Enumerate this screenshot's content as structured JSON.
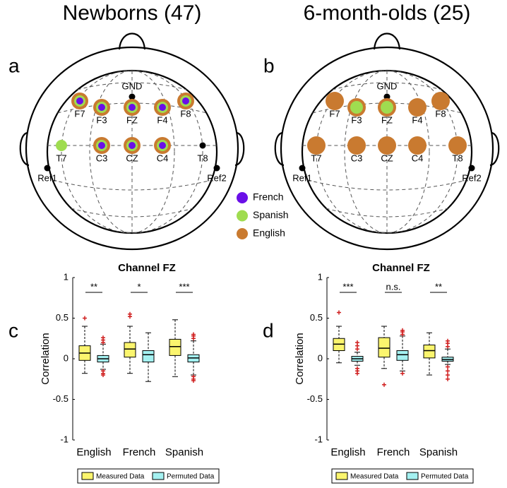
{
  "heads": [
    {
      "panel": "a",
      "title": "Newborns (47)",
      "references": [
        "GND",
        "Ref1",
        "Ref2"
      ],
      "electrodes": [
        {
          "label": "F7",
          "languages": [
            0,
            1,
            2
          ]
        },
        {
          "label": "F3",
          "languages": [
            0,
            1,
            2
          ]
        },
        {
          "label": "FZ",
          "languages": [
            0,
            1,
            2
          ]
        },
        {
          "label": "F4",
          "languages": [
            0,
            1,
            2
          ]
        },
        {
          "label": "F8",
          "languages": [
            0,
            1,
            2
          ]
        },
        {
          "label": "T7",
          "languages": [
            1
          ]
        },
        {
          "label": "C3",
          "languages": [
            0,
            1,
            2
          ]
        },
        {
          "label": "CZ",
          "languages": [
            0,
            1,
            2
          ]
        },
        {
          "label": "C4",
          "languages": [
            0,
            1,
            2
          ]
        },
        {
          "label": "T8",
          "languages": []
        }
      ]
    },
    {
      "panel": "b",
      "title": "6-month-olds (25)",
      "references": [
        "GND",
        "Ref1",
        "Ref2"
      ],
      "electrodes": [
        {
          "label": "F7",
          "languages": [
            2
          ]
        },
        {
          "label": "F3",
          "languages": [
            1,
            2
          ]
        },
        {
          "label": "FZ",
          "languages": [
            1,
            2
          ]
        },
        {
          "label": "F4",
          "languages": [
            2
          ]
        },
        {
          "label": "F8",
          "languages": [
            2
          ]
        },
        {
          "label": "T7",
          "languages": [
            2
          ]
        },
        {
          "label": "C3",
          "languages": [
            2
          ]
        },
        {
          "label": "CZ",
          "languages": [
            2
          ]
        },
        {
          "label": "C4",
          "languages": [
            2
          ]
        },
        {
          "label": "T8",
          "languages": [
            2
          ]
        }
      ]
    }
  ],
  "language_legend": [
    {
      "name": "French",
      "color": "#6a0fe8"
    },
    {
      "name": "Spanish",
      "color": "#9fdc50"
    },
    {
      "name": "English",
      "color": "#c97a30"
    }
  ],
  "chart_data": [
    {
      "type": "box",
      "panel": "c",
      "title": "Channel FZ",
      "ylabel": "Correlation",
      "categories": [
        "English",
        "French",
        "Spanish"
      ],
      "ylim": [
        -1,
        1
      ],
      "yticks": [
        1,
        0.5,
        0,
        -0.5,
        -1
      ],
      "annotations": [
        "**",
        "*",
        "***"
      ],
      "series": [
        {
          "name": "Measured Data",
          "color": "#fbf56e",
          "values": [
            {
              "whislo": -0.18,
              "q1": -0.02,
              "median": 0.07,
              "q3": 0.16,
              "whishi": 0.4,
              "fliers": [
                0.5
              ]
            },
            {
              "whislo": -0.18,
              "q1": 0.02,
              "median": 0.12,
              "q3": 0.2,
              "whishi": 0.4,
              "fliers": [
                0.52,
                0.55
              ]
            },
            {
              "whislo": -0.22,
              "q1": 0.04,
              "median": 0.15,
              "q3": 0.24,
              "whishi": 0.48,
              "fliers": []
            }
          ]
        },
        {
          "name": "Permuted Data",
          "color": "#a4f1f1",
          "values": [
            {
              "whislo": -0.13,
              "q1": -0.04,
              "median": 0.0,
              "q3": 0.04,
              "whishi": 0.18,
              "fliers": [
                0.2,
                0.23,
                0.26,
                -0.15,
                -0.18,
                -0.2
              ]
            },
            {
              "whislo": -0.28,
              "q1": -0.04,
              "median": 0.05,
              "q3": 0.1,
              "whishi": 0.32,
              "fliers": []
            },
            {
              "whislo": -0.2,
              "q1": -0.04,
              "median": 0.01,
              "q3": 0.05,
              "whishi": 0.22,
              "fliers": [
                0.25,
                0.28,
                0.3,
                -0.22,
                -0.25,
                -0.27
              ]
            }
          ]
        }
      ]
    },
    {
      "type": "box",
      "panel": "d",
      "title": "Channel FZ",
      "ylabel": "Correlation",
      "categories": [
        "English",
        "French",
        "Spanish"
      ],
      "ylim": [
        -1,
        1
      ],
      "yticks": [
        1,
        0.5,
        0,
        -0.5,
        -1
      ],
      "annotations": [
        "***",
        "n.s.",
        "**"
      ],
      "series": [
        {
          "name": "Measured Data",
          "color": "#fbf56e",
          "values": [
            {
              "whislo": -0.05,
              "q1": 0.1,
              "median": 0.18,
              "q3": 0.25,
              "whishi": 0.4,
              "fliers": [
                0.57
              ]
            },
            {
              "whislo": -0.12,
              "q1": 0.02,
              "median": 0.13,
              "q3": 0.26,
              "whishi": 0.4,
              "fliers": [
                -0.32
              ]
            },
            {
              "whislo": -0.2,
              "q1": 0.01,
              "median": 0.1,
              "q3": 0.17,
              "whishi": 0.32,
              "fliers": []
            }
          ]
        },
        {
          "name": "Permuted Data",
          "color": "#a4f1f1",
          "values": [
            {
              "whislo": -0.08,
              "q1": -0.03,
              "median": 0.0,
              "q3": 0.03,
              "whishi": 0.08,
              "fliers": [
                0.12,
                0.16,
                0.2,
                -0.12,
                -0.15,
                -0.18
              ]
            },
            {
              "whislo": -0.15,
              "q1": -0.02,
              "median": 0.05,
              "q3": 0.1,
              "whishi": 0.28,
              "fliers": [
                0.3,
                0.33,
                0.35,
                -0.18
              ]
            },
            {
              "whislo": -0.07,
              "q1": -0.03,
              "median": -0.01,
              "q3": 0.02,
              "whishi": 0.12,
              "fliers": [
                0.15,
                0.19,
                0.22,
                -0.1,
                -0.15,
                -0.2,
                -0.25
              ]
            }
          ]
        }
      ]
    }
  ]
}
